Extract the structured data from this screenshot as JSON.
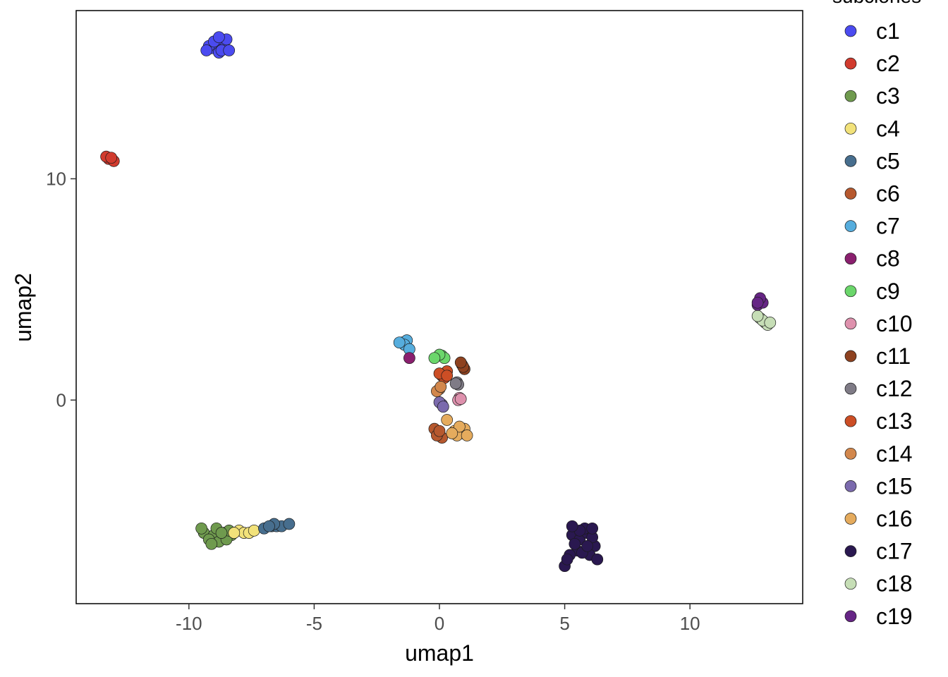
{
  "chart_data": {
    "type": "scatter",
    "title": "",
    "xlabel": "umap1",
    "ylabel": "umap2",
    "xlim": [
      -14.5,
      14.5
    ],
    "ylim": [
      -9.2,
      17.6
    ],
    "x_ticks": [
      -10,
      -5,
      0,
      5,
      10
    ],
    "y_ticks": [
      0,
      10
    ],
    "grid": false,
    "legend": {
      "title": "subclones",
      "placement": "right"
    },
    "series": [
      {
        "name": "c1",
        "color": "#4B4BF0",
        "points": [
          [
            -8.9,
            16.1
          ],
          [
            -8.7,
            16.2
          ],
          [
            -9.1,
            15.9
          ],
          [
            -8.6,
            15.9
          ],
          [
            -8.8,
            15.7
          ],
          [
            -9.2,
            16.0
          ],
          [
            -8.5,
            16.3
          ],
          [
            -8.7,
            15.8
          ],
          [
            -9.0,
            16.2
          ],
          [
            -8.4,
            15.8
          ],
          [
            -8.8,
            16.4
          ],
          [
            -9.3,
            15.8
          ]
        ]
      },
      {
        "name": "c2",
        "color": "#D13B2E",
        "points": [
          [
            -13.2,
            10.9
          ],
          [
            -13.0,
            10.8
          ],
          [
            -13.3,
            11.0
          ],
          [
            -13.1,
            10.95
          ]
        ]
      },
      {
        "name": "c3",
        "color": "#6F9A4E",
        "points": [
          [
            -9.4,
            -6.0
          ],
          [
            -9.0,
            -6.1
          ],
          [
            -8.6,
            -6.0
          ],
          [
            -8.3,
            -6.1
          ],
          [
            -9.2,
            -6.3
          ],
          [
            -8.8,
            -6.4
          ],
          [
            -8.5,
            -6.3
          ],
          [
            -9.5,
            -5.8
          ],
          [
            -8.9,
            -5.8
          ],
          [
            -8.4,
            -5.9
          ],
          [
            -9.1,
            -6.5
          ],
          [
            -8.7,
            -6.0
          ]
        ]
      },
      {
        "name": "c4",
        "color": "#F2E27A",
        "points": [
          [
            -8.0,
            -5.9
          ],
          [
            -7.8,
            -6.0
          ],
          [
            -7.6,
            -6.0
          ],
          [
            -7.4,
            -5.9
          ],
          [
            -8.2,
            -6.0
          ]
        ]
      },
      {
        "name": "c5",
        "color": "#476E8E",
        "points": [
          [
            -7.0,
            -5.8
          ],
          [
            -6.7,
            -5.7
          ],
          [
            -6.5,
            -5.7
          ],
          [
            -6.3,
            -5.7
          ],
          [
            -6.0,
            -5.6
          ],
          [
            -6.6,
            -5.6
          ],
          [
            -6.8,
            -5.7
          ]
        ]
      },
      {
        "name": "c6",
        "color": "#B6582E",
        "points": [
          [
            -0.2,
            -1.3
          ],
          [
            0.0,
            -1.5
          ],
          [
            0.1,
            -1.7
          ],
          [
            -0.1,
            -1.6
          ],
          [
            0.0,
            -1.4
          ]
        ]
      },
      {
        "name": "c7",
        "color": "#56ADDD",
        "points": [
          [
            -1.5,
            2.6
          ],
          [
            -1.3,
            2.7
          ],
          [
            -1.4,
            2.5
          ],
          [
            -1.2,
            2.3
          ],
          [
            -1.6,
            2.6
          ]
        ]
      },
      {
        "name": "c8",
        "color": "#8A1F6E",
        "points": [
          [
            -1.2,
            1.9
          ]
        ]
      },
      {
        "name": "c9",
        "color": "#6BD66B",
        "points": [
          [
            0.1,
            2.0
          ],
          [
            0.2,
            1.9
          ],
          [
            0.0,
            2.05
          ],
          [
            -0.2,
            1.9
          ]
        ]
      },
      {
        "name": "c10",
        "color": "#DE91AD",
        "points": [
          [
            0.8,
            0.1
          ],
          [
            0.75,
            0.0
          ],
          [
            0.85,
            0.05
          ]
        ]
      },
      {
        "name": "c11",
        "color": "#8E4220",
        "points": [
          [
            0.9,
            1.6
          ],
          [
            1.0,
            1.4
          ],
          [
            0.95,
            1.5
          ],
          [
            0.85,
            1.7
          ]
        ]
      },
      {
        "name": "c12",
        "color": "#7F7B86",
        "points": [
          [
            0.7,
            0.8
          ],
          [
            0.75,
            0.7
          ],
          [
            0.65,
            0.75
          ]
        ]
      },
      {
        "name": "c13",
        "color": "#CC4E25",
        "points": [
          [
            0.1,
            1.1
          ],
          [
            0.3,
            1.3
          ],
          [
            0.2,
            1.0
          ],
          [
            0.0,
            1.2
          ],
          [
            0.3,
            1.1
          ]
        ]
      },
      {
        "name": "c14",
        "color": "#D2874C",
        "points": [
          [
            0.0,
            0.5
          ],
          [
            -0.1,
            0.4
          ],
          [
            0.05,
            0.6
          ]
        ]
      },
      {
        "name": "c15",
        "color": "#7B6AAD",
        "points": [
          [
            0.1,
            -0.2
          ],
          [
            0.0,
            -0.1
          ],
          [
            0.15,
            -0.3
          ]
        ]
      },
      {
        "name": "c16",
        "color": "#E5AB5D",
        "points": [
          [
            0.6,
            -1.4
          ],
          [
            0.9,
            -1.5
          ],
          [
            1.0,
            -1.3
          ],
          [
            0.7,
            -1.6
          ],
          [
            0.8,
            -1.2
          ],
          [
            1.1,
            -1.6
          ],
          [
            0.5,
            -1.5
          ],
          [
            0.3,
            -0.9
          ]
        ]
      },
      {
        "name": "c17",
        "color": "#2A1850",
        "points": [
          [
            5.3,
            -6.1
          ],
          [
            5.6,
            -6.3
          ],
          [
            5.9,
            -6.0
          ],
          [
            6.2,
            -6.6
          ],
          [
            5.5,
            -6.8
          ],
          [
            5.2,
            -7.0
          ],
          [
            5.0,
            -7.5
          ],
          [
            6.0,
            -7.0
          ],
          [
            5.8,
            -5.8
          ],
          [
            5.4,
            -6.5
          ],
          [
            6.1,
            -6.2
          ],
          [
            5.7,
            -6.9
          ],
          [
            5.1,
            -7.2
          ],
          [
            6.3,
            -7.2
          ],
          [
            5.6,
            -5.9
          ],
          [
            5.9,
            -6.6
          ],
          [
            5.3,
            -5.7
          ],
          [
            6.1,
            -5.8
          ]
        ]
      },
      {
        "name": "c18",
        "color": "#C6DEB6",
        "points": [
          [
            12.8,
            3.7
          ],
          [
            13.0,
            3.5
          ],
          [
            13.1,
            3.4
          ],
          [
            12.9,
            3.6
          ],
          [
            12.7,
            3.8
          ],
          [
            13.2,
            3.5
          ]
        ]
      },
      {
        "name": "c19",
        "color": "#662585",
        "points": [
          [
            12.7,
            4.3
          ],
          [
            12.8,
            4.5
          ],
          [
            12.9,
            4.4
          ],
          [
            12.8,
            4.6
          ],
          [
            12.7,
            4.4
          ]
        ]
      }
    ]
  }
}
